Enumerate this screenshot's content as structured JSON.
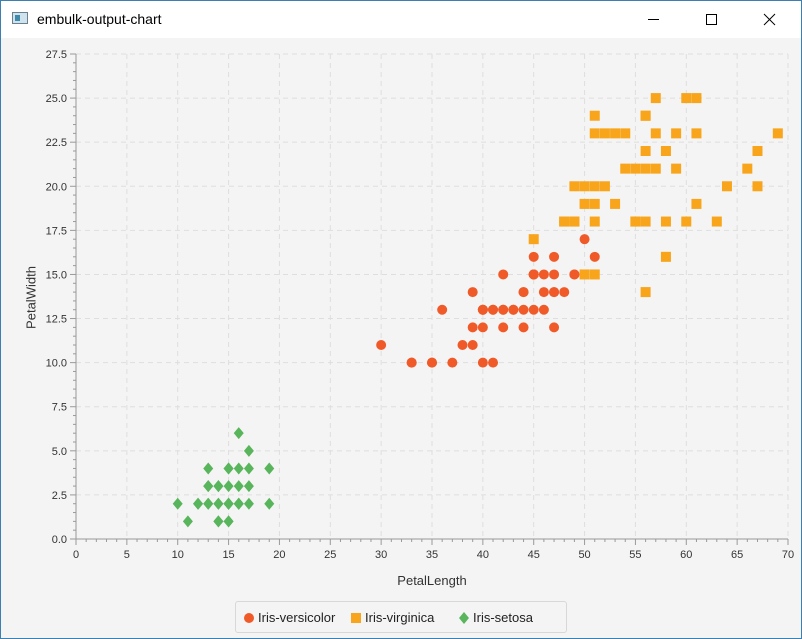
{
  "window": {
    "title": "embulk-output-chart"
  },
  "colors": {
    "versicolor": "#f05a28",
    "virginica": "#f8a51b",
    "setosa": "#58b55b",
    "grid": "#dedede",
    "axis": "#999999"
  },
  "icons": {
    "app": "app-window-icon",
    "minimize": "minimize-icon",
    "maximize": "maximize-icon",
    "close": "close-icon"
  },
  "chart_data": {
    "type": "scatter",
    "title": "",
    "xlabel": "PetalLength",
    "ylabel": "PetalWidth",
    "xlim": [
      0,
      70
    ],
    "ylim": [
      0,
      27.5
    ],
    "xticks": [
      "0",
      "5",
      "10",
      "15",
      "20",
      "25",
      "30",
      "35",
      "40",
      "45",
      "50",
      "55",
      "60",
      "65",
      "70"
    ],
    "yticks": [
      "0.0",
      "2.5",
      "5.0",
      "7.5",
      "10.0",
      "12.5",
      "15.0",
      "17.5",
      "20.0",
      "22.5",
      "25.0",
      "27.5"
    ],
    "grid": true,
    "legend_position": "bottom",
    "series": [
      {
        "name": "Iris-versicolor",
        "marker": "circle",
        "color": "#f05a28",
        "points": [
          [
            47,
            14
          ],
          [
            45,
            15
          ],
          [
            49,
            15
          ],
          [
            40,
            13
          ],
          [
            46,
            15
          ],
          [
            45,
            13
          ],
          [
            47,
            16
          ],
          [
            33,
            10
          ],
          [
            46,
            13
          ],
          [
            39,
            14
          ],
          [
            35,
            10
          ],
          [
            42,
            15
          ],
          [
            40,
            10
          ],
          [
            47,
            14
          ],
          [
            36,
            13
          ],
          [
            44,
            14
          ],
          [
            45,
            15
          ],
          [
            41,
            10
          ],
          [
            45,
            15
          ],
          [
            39,
            11
          ],
          [
            48,
            18
          ],
          [
            40,
            13
          ],
          [
            49,
            15
          ],
          [
            47,
            12
          ],
          [
            43,
            13
          ],
          [
            44,
            14
          ],
          [
            48,
            14
          ],
          [
            50,
            17
          ],
          [
            45,
            15
          ],
          [
            35,
            10
          ],
          [
            38,
            11
          ],
          [
            37,
            10
          ],
          [
            39,
            12
          ],
          [
            51,
            16
          ],
          [
            45,
            15
          ],
          [
            45,
            16
          ],
          [
            47,
            15
          ],
          [
            44,
            13
          ],
          [
            41,
            13
          ],
          [
            40,
            13
          ],
          [
            44,
            12
          ],
          [
            46,
            14
          ],
          [
            40,
            12
          ],
          [
            33,
            10
          ],
          [
            42,
            13
          ],
          [
            42,
            12
          ],
          [
            42,
            13
          ],
          [
            43,
            13
          ],
          [
            30,
            11
          ],
          [
            41,
            13
          ]
        ]
      },
      {
        "name": "Iris-virginica",
        "marker": "square",
        "color": "#f8a51b",
        "points": [
          [
            60,
            25
          ],
          [
            51,
            19
          ],
          [
            59,
            21
          ],
          [
            56,
            18
          ],
          [
            58,
            22
          ],
          [
            66,
            21
          ],
          [
            45,
            17
          ],
          [
            63,
            18
          ],
          [
            58,
            18
          ],
          [
            61,
            25
          ],
          [
            51,
            20
          ],
          [
            53,
            19
          ],
          [
            55,
            21
          ],
          [
            50,
            20
          ],
          [
            51,
            24
          ],
          [
            53,
            23
          ],
          [
            55,
            18
          ],
          [
            67,
            22
          ],
          [
            69,
            23
          ],
          [
            50,
            15
          ],
          [
            57,
            23
          ],
          [
            49,
            20
          ],
          [
            67,
            20
          ],
          [
            49,
            18
          ],
          [
            57,
            21
          ],
          [
            60,
            18
          ],
          [
            48,
            18
          ],
          [
            49,
            18
          ],
          [
            56,
            21
          ],
          [
            58,
            16
          ],
          [
            61,
            19
          ],
          [
            64,
            20
          ],
          [
            56,
            22
          ],
          [
            51,
            15
          ],
          [
            56,
            14
          ],
          [
            61,
            23
          ],
          [
            56,
            24
          ],
          [
            55,
            18
          ],
          [
            48,
            18
          ],
          [
            54,
            21
          ],
          [
            56,
            24
          ],
          [
            51,
            23
          ],
          [
            59,
            23
          ],
          [
            57,
            25
          ],
          [
            52,
            23
          ],
          [
            50,
            19
          ],
          [
            52,
            20
          ],
          [
            54,
            23
          ],
          [
            51,
            18
          ]
        ]
      },
      {
        "name": "Iris-setosa",
        "marker": "diamond",
        "color": "#58b55b",
        "points": [
          [
            14,
            2
          ],
          [
            13,
            2
          ],
          [
            15,
            2
          ],
          [
            14,
            2
          ],
          [
            17,
            4
          ],
          [
            14,
            3
          ],
          [
            15,
            2
          ],
          [
            14,
            1
          ],
          [
            15,
            1
          ],
          [
            16,
            2
          ],
          [
            14,
            1
          ],
          [
            11,
            1
          ],
          [
            12,
            2
          ],
          [
            15,
            4
          ],
          [
            13,
            4
          ],
          [
            14,
            3
          ],
          [
            17,
            3
          ],
          [
            15,
            3
          ],
          [
            17,
            2
          ],
          [
            15,
            4
          ],
          [
            10,
            2
          ],
          [
            17,
            5
          ],
          [
            19,
            2
          ],
          [
            16,
            2
          ],
          [
            16,
            4
          ],
          [
            15,
            2
          ],
          [
            16,
            2
          ],
          [
            12,
            2
          ],
          [
            13,
            2
          ],
          [
            15,
            1
          ],
          [
            13,
            3
          ],
          [
            13,
            3
          ],
          [
            16,
            6
          ],
          [
            19,
            4
          ],
          [
            16,
            3
          ],
          [
            15,
            2
          ]
        ]
      }
    ]
  }
}
